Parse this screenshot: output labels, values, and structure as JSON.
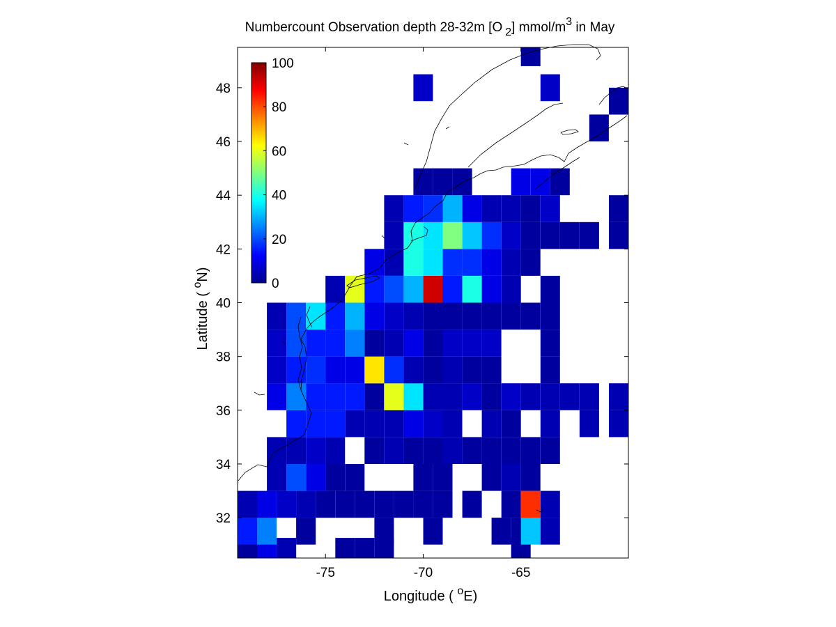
{
  "chart_data": {
    "type": "heatmap",
    "title": {
      "main": "Numbercount Observation depth 28-32m [O",
      "sub": "2",
      "mid": "] mmol/m",
      "sup": "3",
      "end": " in May"
    },
    "xlabel": {
      "pre": "Longitude ( ",
      "sup": "o",
      "post": "E)"
    },
    "ylabel": {
      "pre": "Latitude ( ",
      "sup": "o",
      "post": "N)"
    },
    "xlim": [
      -79.5,
      -59.5
    ],
    "ylim": [
      30.5,
      49.5
    ],
    "xticks": [
      -75,
      -70,
      -65
    ],
    "yticks": [
      32,
      34,
      36,
      38,
      40,
      42,
      44,
      46,
      48
    ],
    "grid": false,
    "colormap": "jet",
    "colorbar": {
      "min": 0,
      "max": 100,
      "ticks": [
        0,
        20,
        40,
        60,
        80,
        100
      ],
      "placement": "top-left inside"
    },
    "cells": [
      [
        -79,
        30.75,
        3
      ],
      [
        -78,
        30.75,
        10
      ],
      [
        -77,
        30.75,
        5
      ],
      [
        -74,
        30.75,
        3
      ],
      [
        -73,
        30.75,
        3
      ],
      [
        -72,
        30.75,
        3
      ],
      [
        -65,
        30.75,
        3
      ],
      [
        -79,
        31.5,
        15
      ],
      [
        -78,
        31.5,
        25
      ],
      [
        -76,
        31.5,
        3
      ],
      [
        -72,
        31.5,
        3
      ],
      [
        -69.5,
        31.5,
        3
      ],
      [
        -66,
        31.5,
        3
      ],
      [
        -65,
        31.5,
        3
      ],
      [
        -64.5,
        31.5,
        32
      ],
      [
        -63.5,
        31.5,
        5
      ],
      [
        -79,
        32.5,
        5
      ],
      [
        -78,
        32.5,
        10
      ],
      [
        -77,
        32.5,
        7
      ],
      [
        -76,
        32.5,
        5
      ],
      [
        -75,
        32.5,
        3
      ],
      [
        -74,
        32.5,
        3
      ],
      [
        -73,
        32.5,
        3
      ],
      [
        -72,
        32.5,
        3
      ],
      [
        -71,
        32.5,
        3
      ],
      [
        -70,
        32.5,
        3
      ],
      [
        -69,
        32.5,
        3
      ],
      [
        -67.5,
        32.5,
        3
      ],
      [
        -65.5,
        32.5,
        3
      ],
      [
        -64.5,
        32.5,
        83
      ],
      [
        -63.5,
        32.5,
        5
      ],
      [
        -77.5,
        33.5,
        5
      ],
      [
        -76.5,
        33.5,
        20
      ],
      [
        -75.5,
        33.5,
        10
      ],
      [
        -74.5,
        33.5,
        3
      ],
      [
        -73.5,
        33.5,
        3
      ],
      [
        -70,
        33.5,
        3
      ],
      [
        -69,
        33.5,
        3
      ],
      [
        -66.5,
        33.5,
        3
      ],
      [
        -65.5,
        33.5,
        5
      ],
      [
        -64.5,
        33.5,
        3
      ],
      [
        -77.5,
        34.5,
        5
      ],
      [
        -76.5,
        34.5,
        5
      ],
      [
        -75.5,
        34.5,
        7
      ],
      [
        -74.5,
        34.5,
        5
      ],
      [
        -72.5,
        34.5,
        3
      ],
      [
        -71.5,
        34.5,
        5
      ],
      [
        -70.5,
        34.5,
        3
      ],
      [
        -69.5,
        34.5,
        3
      ],
      [
        -68.5,
        34.5,
        5
      ],
      [
        -67.5,
        34.5,
        3
      ],
      [
        -66.5,
        34.5,
        3
      ],
      [
        -65.5,
        34.5,
        3
      ],
      [
        -64.5,
        34.5,
        3
      ],
      [
        -63.5,
        34.5,
        3
      ],
      [
        -76.5,
        35.5,
        15
      ],
      [
        -75.5,
        35.5,
        15
      ],
      [
        -74.5,
        35.5,
        15
      ],
      [
        -73.5,
        35.5,
        5
      ],
      [
        -72.5,
        35.5,
        5
      ],
      [
        -71.5,
        35.5,
        5
      ],
      [
        -70.5,
        35.5,
        10
      ],
      [
        -69.5,
        35.5,
        7
      ],
      [
        -68.5,
        35.5,
        5
      ],
      [
        -66.5,
        35.5,
        5
      ],
      [
        -65.5,
        35.5,
        3
      ],
      [
        -63.5,
        35.5,
        5
      ],
      [
        -61.5,
        35.5,
        5
      ],
      [
        -60,
        35.5,
        5
      ],
      [
        -77.5,
        36.5,
        10
      ],
      [
        -76.5,
        36.5,
        25
      ],
      [
        -75.5,
        36.5,
        15
      ],
      [
        -74.5,
        36.5,
        15
      ],
      [
        -73.5,
        36.5,
        15
      ],
      [
        -72.5,
        36.5,
        3
      ],
      [
        -71.5,
        36.5,
        60
      ],
      [
        -70.5,
        36.5,
        35
      ],
      [
        -69.5,
        36.5,
        5
      ],
      [
        -68.5,
        36.5,
        5
      ],
      [
        -67.5,
        36.5,
        7
      ],
      [
        -66.5,
        36.5,
        3
      ],
      [
        -65.5,
        36.5,
        7
      ],
      [
        -64.5,
        36.5,
        5
      ],
      [
        -63.5,
        36.5,
        5
      ],
      [
        -62.5,
        36.5,
        5
      ],
      [
        -61.5,
        36.5,
        5
      ],
      [
        -60,
        36.5,
        5
      ],
      [
        -77.5,
        37.5,
        7
      ],
      [
        -76.5,
        37.5,
        15
      ],
      [
        -75.5,
        37.5,
        17
      ],
      [
        -74.5,
        37.5,
        10
      ],
      [
        -73.5,
        37.5,
        10
      ],
      [
        -72.5,
        37.5,
        65
      ],
      [
        -71.5,
        37.5,
        17
      ],
      [
        -70.5,
        37.5,
        5
      ],
      [
        -69.5,
        37.5,
        3
      ],
      [
        -68.5,
        37.5,
        5
      ],
      [
        -67.5,
        37.5,
        3
      ],
      [
        -66.5,
        37.5,
        3
      ],
      [
        -63.5,
        37.5,
        3
      ],
      [
        -77.5,
        38.5,
        7
      ],
      [
        -76.5,
        38.5,
        20
      ],
      [
        -75.5,
        38.5,
        15
      ],
      [
        -74.5,
        38.5,
        15
      ],
      [
        -73.5,
        38.5,
        25
      ],
      [
        -72.5,
        38.5,
        3
      ],
      [
        -71.5,
        38.5,
        5
      ],
      [
        -70.5,
        38.5,
        10
      ],
      [
        -69.5,
        38.5,
        3
      ],
      [
        -68.5,
        38.5,
        7
      ],
      [
        -67.5,
        38.5,
        7
      ],
      [
        -66.5,
        38.5,
        7
      ],
      [
        -63.5,
        38.5,
        3
      ],
      [
        -77.5,
        39.5,
        5
      ],
      [
        -76.5,
        39.5,
        20
      ],
      [
        -75.5,
        39.5,
        35
      ],
      [
        -74.5,
        39.5,
        15
      ],
      [
        -73.5,
        39.5,
        30
      ],
      [
        -72.5,
        39.5,
        10
      ],
      [
        -71.5,
        39.5,
        7
      ],
      [
        -70.5,
        39.5,
        5
      ],
      [
        -69.5,
        39.5,
        3
      ],
      [
        -68.5,
        39.5,
        3
      ],
      [
        -67.5,
        39.5,
        3
      ],
      [
        -66.5,
        39.5,
        3
      ],
      [
        -65.5,
        39.5,
        3
      ],
      [
        -64.5,
        39.5,
        3
      ],
      [
        -63.5,
        39.5,
        3
      ],
      [
        -74.5,
        40.5,
        5
      ],
      [
        -73.5,
        40.5,
        60
      ],
      [
        -72.5,
        40.5,
        15
      ],
      [
        -71.5,
        40.5,
        20
      ],
      [
        -70.5,
        40.5,
        30
      ],
      [
        -69.5,
        40.5,
        92
      ],
      [
        -68.5,
        40.5,
        15
      ],
      [
        -67.5,
        40.5,
        40
      ],
      [
        -66.5,
        40.5,
        10
      ],
      [
        -65.5,
        40.5,
        5
      ],
      [
        -63.5,
        40.5,
        3
      ],
      [
        -72.5,
        41.5,
        10
      ],
      [
        -71.5,
        41.5,
        5
      ],
      [
        -70.5,
        41.5,
        40
      ],
      [
        -69.5,
        41.5,
        35
      ],
      [
        -68.5,
        41.5,
        17
      ],
      [
        -67.5,
        41.5,
        17
      ],
      [
        -66.5,
        41.5,
        10
      ],
      [
        -65.5,
        41.5,
        5
      ],
      [
        -64.5,
        41.5,
        3
      ],
      [
        -71.5,
        42.5,
        5
      ],
      [
        -70.5,
        42.5,
        40
      ],
      [
        -69.5,
        42.5,
        35
      ],
      [
        -68.5,
        42.5,
        50
      ],
      [
        -67.5,
        42.5,
        32
      ],
      [
        -66.5,
        42.5,
        17
      ],
      [
        -65.5,
        42.5,
        7
      ],
      [
        -64.5,
        42.5,
        3
      ],
      [
        -63.5,
        42.5,
        3
      ],
      [
        -62.5,
        42.5,
        3
      ],
      [
        -61.5,
        42.5,
        3
      ],
      [
        -60,
        42.5,
        3
      ],
      [
        -71.5,
        43.5,
        5
      ],
      [
        -70.5,
        43.5,
        15
      ],
      [
        -69.5,
        43.5,
        17
      ],
      [
        -68.5,
        43.5,
        30
      ],
      [
        -67.5,
        43.5,
        10
      ],
      [
        -66.5,
        43.5,
        5
      ],
      [
        -65.5,
        43.5,
        5
      ],
      [
        -64.5,
        43.5,
        3
      ],
      [
        -63.5,
        43.5,
        7
      ],
      [
        -60,
        43.5,
        3
      ],
      [
        -70,
        44.5,
        3
      ],
      [
        -69,
        44.5,
        3
      ],
      [
        -68,
        44.5,
        3
      ],
      [
        -65,
        44.5,
        10
      ],
      [
        -64,
        44.5,
        10
      ],
      [
        -63,
        44.5,
        3
      ],
      [
        -61,
        46.5,
        3
      ],
      [
        -60,
        47.5,
        3
      ],
      [
        -70,
        48,
        7
      ],
      [
        -63.5,
        48,
        7
      ],
      [
        -64.5,
        49.3,
        3
      ]
    ]
  }
}
